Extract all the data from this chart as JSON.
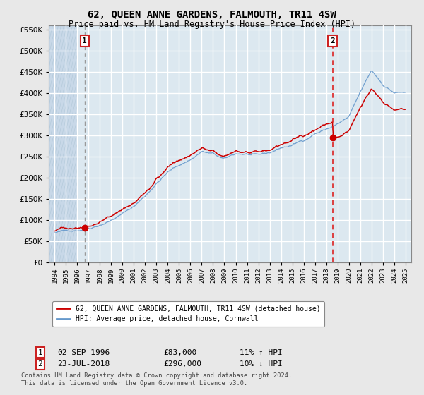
{
  "title": "62, QUEEN ANNE GARDENS, FALMOUTH, TR11 4SW",
  "subtitle": "Price paid vs. HM Land Registry's House Price Index (HPI)",
  "ylim": [
    0,
    560000
  ],
  "yticks": [
    0,
    50000,
    100000,
    150000,
    200000,
    250000,
    300000,
    350000,
    400000,
    450000,
    500000,
    550000
  ],
  "sale1_date": 1996.67,
  "sale1_price": 83000,
  "sale1_label": "1",
  "sale2_date": 2018.55,
  "sale2_price": 296000,
  "sale2_label": "2",
  "hpi_line_color": "#6699cc",
  "price_line_color": "#cc0000",
  "sale1_vline_color": "#999999",
  "sale2_vline_color": "#dd2222",
  "background_color": "#e8e8e8",
  "plot_bg_color": "#dce8f0",
  "hatch_color": "#c8d8e8",
  "grid_color": "#ffffff",
  "legend_label_price": "62, QUEEN ANNE GARDENS, FALMOUTH, TR11 4SW (detached house)",
  "legend_label_hpi": "HPI: Average price, detached house, Cornwall",
  "table_row1": [
    "1",
    "02-SEP-1996",
    "£83,000",
    "11% ↑ HPI"
  ],
  "table_row2": [
    "2",
    "23-JUL-2018",
    "£296,000",
    "10% ↓ HPI"
  ],
  "footer": "Contains HM Land Registry data © Crown copyright and database right 2024.\nThis data is licensed under the Open Government Licence v3.0.",
  "font_family": "monospace"
}
